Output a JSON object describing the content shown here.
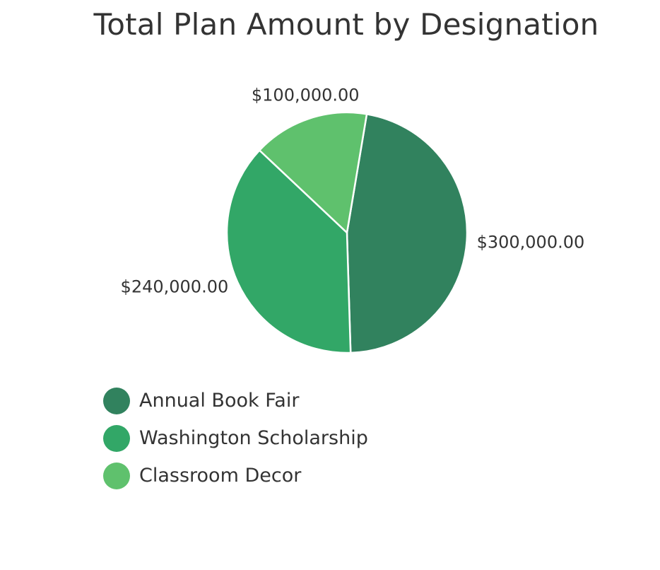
{
  "chart_data": {
    "type": "pie",
    "title": "Total Plan Amount by Designation",
    "series": [
      {
        "name": "Annual Book Fair",
        "value": 300000,
        "label": "$300,000.00",
        "color": "#31825e"
      },
      {
        "name": "Washington Scholarship",
        "value": 240000,
        "label": "$240,000.00",
        "color": "#32a767"
      },
      {
        "name": "Classroom Decor",
        "value": 100000,
        "label": "$100,000.00",
        "color": "#5fc16d"
      }
    ],
    "legend_position": "bottom-left"
  }
}
